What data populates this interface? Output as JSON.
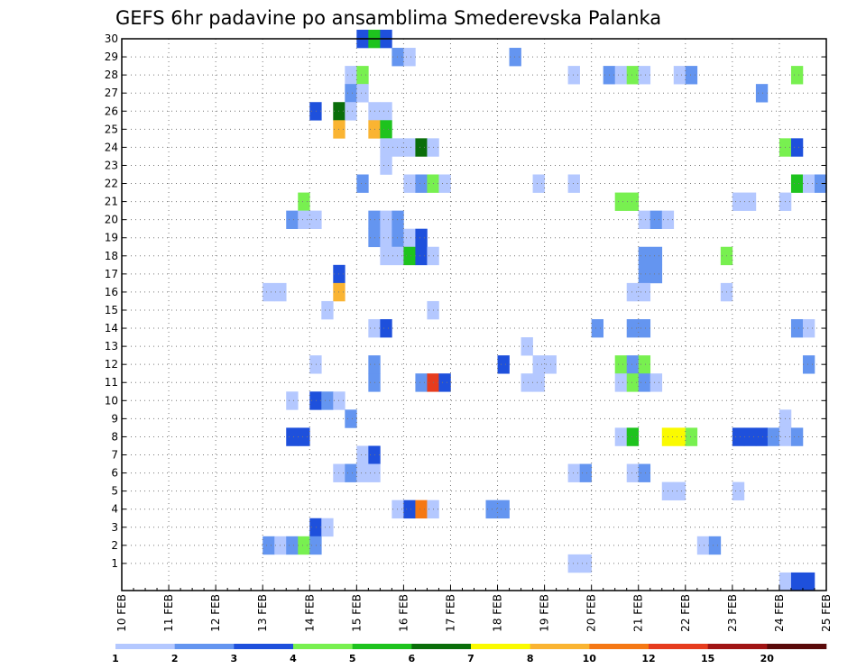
{
  "chart_data": {
    "type": "heatmap",
    "title": "GEFS 6hr padavine po ansamblima Smederevska Palanka",
    "x_ticks": [
      "10 FEB",
      "11 FEB",
      "12 FEB",
      "13 FEB",
      "14 FEB",
      "15 FEB",
      "16 FEB",
      "17 FEB",
      "18 FEB",
      "19 FEB",
      "20 FEB",
      "21 FEB",
      "22 FEB",
      "23 FEB",
      "24 FEB",
      "25 FEB"
    ],
    "y_ticks": [
      "1",
      "2",
      "3",
      "4",
      "5",
      "6",
      "7",
      "8",
      "9",
      "10",
      "11",
      "12",
      "13",
      "14",
      "15",
      "16",
      "17",
      "18",
      "19",
      "20",
      "21",
      "22",
      "23",
      "24",
      "25",
      "26",
      "27",
      "28",
      "29",
      "30"
    ],
    "xlim": [
      "10 FEB",
      "25 FEB"
    ],
    "ylim": [
      0,
      30
    ],
    "grid": true,
    "colorbar": {
      "labels": [
        "1",
        "2",
        "3",
        "4",
        "5",
        "6",
        "7",
        "8",
        "10",
        "12",
        "15",
        "20"
      ],
      "colors": [
        "#b4c8ff",
        "#6495f0",
        "#1e50dc",
        "#78f050",
        "#1ec31e",
        "#0a6e0a",
        "#fafa00",
        "#fab432",
        "#f57814",
        "#e63c1e",
        "#a01414",
        "#5a0a0a"
      ]
    },
    "cells": [
      [
        "15 00Z",
        30,
        3
      ],
      [
        "15 06Z",
        30,
        5
      ],
      [
        "15 12Z",
        30,
        3
      ],
      [
        "15 18Z",
        29,
        2
      ],
      [
        "16 00Z",
        29,
        1
      ],
      [
        "18 06Z",
        29,
        2
      ],
      [
        "14 18Z",
        28,
        1
      ],
      [
        "15 00Z",
        28,
        4
      ],
      [
        "19 12Z",
        28,
        1
      ],
      [
        "20 06Z",
        28,
        2
      ],
      [
        "20 12Z",
        28,
        1
      ],
      [
        "20 18Z",
        28,
        4
      ],
      [
        "21 00Z",
        28,
        1
      ],
      [
        "21 18Z",
        28,
        1
      ],
      [
        "22 00Z",
        28,
        2
      ],
      [
        "24 06Z",
        28,
        4
      ],
      [
        "14 18Z",
        27,
        2
      ],
      [
        "15 00Z",
        27,
        1
      ],
      [
        "23 12Z",
        27,
        2
      ],
      [
        "14 00Z",
        26,
        3
      ],
      [
        "14 12Z",
        26,
        6
      ],
      [
        "14 18Z",
        26,
        1
      ],
      [
        "15 06Z",
        26,
        1
      ],
      [
        "15 12Z",
        26,
        1
      ],
      [
        "14 12Z",
        25,
        8
      ],
      [
        "15 06Z",
        25,
        8
      ],
      [
        "15 12Z",
        25,
        5
      ],
      [
        "15 12Z",
        24,
        1
      ],
      [
        "15 18Z",
        24,
        1
      ],
      [
        "16 00Z",
        24,
        1
      ],
      [
        "16 06Z",
        24,
        6
      ],
      [
        "16 12Z",
        24,
        1
      ],
      [
        "24 00Z",
        24,
        4
      ],
      [
        "24 06Z",
        24,
        3
      ],
      [
        "15 12Z",
        23,
        1
      ],
      [
        "15 00Z",
        22,
        2
      ],
      [
        "16 00Z",
        22,
        1
      ],
      [
        "16 06Z",
        22,
        2
      ],
      [
        "16 12Z",
        22,
        4
      ],
      [
        "16 18Z",
        22,
        1
      ],
      [
        "18 18Z",
        22,
        1
      ],
      [
        "19 12Z",
        22,
        1
      ],
      [
        "24 06Z",
        22,
        5
      ],
      [
        "24 12Z",
        22,
        1
      ],
      [
        "24 18Z",
        22,
        2
      ],
      [
        "13 18Z",
        21,
        4
      ],
      [
        "20 12Z",
        21,
        4
      ],
      [
        "20 18Z",
        21,
        4
      ],
      [
        "23 00Z",
        21,
        1
      ],
      [
        "23 06Z",
        21,
        1
      ],
      [
        "24 00Z",
        21,
        1
      ],
      [
        "13 12Z",
        20,
        2
      ],
      [
        "13 18Z",
        20,
        1
      ],
      [
        "14 00Z",
        20,
        1
      ],
      [
        "15 06Z",
        20,
        2
      ],
      [
        "15 12Z",
        20,
        1
      ],
      [
        "15 18Z",
        20,
        2
      ],
      [
        "21 00Z",
        20,
        1
      ],
      [
        "21 06Z",
        20,
        2
      ],
      [
        "21 12Z",
        20,
        1
      ],
      [
        "15 06Z",
        19,
        2
      ],
      [
        "15 12Z",
        19,
        1
      ],
      [
        "15 18Z",
        19,
        2
      ],
      [
        "16 00Z",
        19,
        1
      ],
      [
        "16 06Z",
        19,
        3
      ],
      [
        "15 12Z",
        18,
        1
      ],
      [
        "15 18Z",
        18,
        1
      ],
      [
        "16 00Z",
        18,
        5
      ],
      [
        "16 06Z",
        18,
        3
      ],
      [
        "16 12Z",
        18,
        1
      ],
      [
        "21 00Z",
        18,
        2
      ],
      [
        "21 06Z",
        18,
        2
      ],
      [
        "22 18Z",
        18,
        4
      ],
      [
        "14 12Z",
        17,
        3
      ],
      [
        "21 00Z",
        17,
        2
      ],
      [
        "21 06Z",
        17,
        2
      ],
      [
        "13 00Z",
        16,
        1
      ],
      [
        "13 06Z",
        16,
        1
      ],
      [
        "14 12Z",
        16,
        8
      ],
      [
        "20 18Z",
        16,
        1
      ],
      [
        "21 00Z",
        16,
        1
      ],
      [
        "22 18Z",
        16,
        1
      ],
      [
        "14 06Z",
        15,
        1
      ],
      [
        "16 12Z",
        15,
        1
      ],
      [
        "15 06Z",
        14,
        1
      ],
      [
        "15 12Z",
        14,
        3
      ],
      [
        "20 00Z",
        14,
        2
      ],
      [
        "20 18Z",
        14,
        2
      ],
      [
        "21 00Z",
        14,
        2
      ],
      [
        "24 06Z",
        14,
        2
      ],
      [
        "24 12Z",
        14,
        1
      ],
      [
        "18 12Z",
        13,
        1
      ],
      [
        "14 00Z",
        12,
        1
      ],
      [
        "15 06Z",
        12,
        2
      ],
      [
        "18 00Z",
        12,
        3
      ],
      [
        "18 18Z",
        12,
        1
      ],
      [
        "19 00Z",
        12,
        1
      ],
      [
        "20 12Z",
        12,
        4
      ],
      [
        "20 18Z",
        12,
        2
      ],
      [
        "21 00Z",
        12,
        4
      ],
      [
        "24 12Z",
        12,
        2
      ],
      [
        "15 06Z",
        11,
        2
      ],
      [
        "16 06Z",
        11,
        2
      ],
      [
        "16 12Z",
        11,
        10
      ],
      [
        "16 18Z",
        11,
        3
      ],
      [
        "18 12Z",
        11,
        1
      ],
      [
        "18 18Z",
        11,
        1
      ],
      [
        "20 12Z",
        11,
        1
      ],
      [
        "20 18Z",
        11,
        4
      ],
      [
        "21 00Z",
        11,
        2
      ],
      [
        "21 06Z",
        11,
        1
      ],
      [
        "13 12Z",
        10,
        1
      ],
      [
        "14 00Z",
        10,
        3
      ],
      [
        "14 06Z",
        10,
        2
      ],
      [
        "14 12Z",
        10,
        1
      ],
      [
        "14 18Z",
        9,
        2
      ],
      [
        "24 00Z",
        9,
        1
      ],
      [
        "13 12Z",
        8,
        3
      ],
      [
        "13 18Z",
        8,
        3
      ],
      [
        "20 12Z",
        8,
        1
      ],
      [
        "20 18Z",
        8,
        5
      ],
      [
        "21 12Z",
        8,
        7
      ],
      [
        "21 18Z",
        8,
        7
      ],
      [
        "22 00Z",
        8,
        4
      ],
      [
        "23 00Z",
        8,
        3
      ],
      [
        "23 06Z",
        8,
        3
      ],
      [
        "23 12Z",
        8,
        3
      ],
      [
        "23 18Z",
        8,
        2
      ],
      [
        "24 00Z",
        8,
        1
      ],
      [
        "24 06Z",
        8,
        2
      ],
      [
        "15 00Z",
        7,
        1
      ],
      [
        "15 06Z",
        7,
        3
      ],
      [
        "14 12Z",
        6,
        1
      ],
      [
        "14 18Z",
        6,
        2
      ],
      [
        "15 00Z",
        6,
        1
      ],
      [
        "15 06Z",
        6,
        1
      ],
      [
        "19 12Z",
        6,
        1
      ],
      [
        "19 18Z",
        6,
        2
      ],
      [
        "20 18Z",
        6,
        1
      ],
      [
        "21 00Z",
        6,
        2
      ],
      [
        "21 12Z",
        5,
        1
      ],
      [
        "21 18Z",
        5,
        1
      ],
      [
        "23 00Z",
        5,
        1
      ],
      [
        "15 18Z",
        4,
        1
      ],
      [
        "16 00Z",
        4,
        3
      ],
      [
        "16 06Z",
        4,
        9
      ],
      [
        "16 12Z",
        4,
        1
      ],
      [
        "17 18Z",
        4,
        2
      ],
      [
        "18 00Z",
        4,
        2
      ],
      [
        "14 00Z",
        3,
        3
      ],
      [
        "14 06Z",
        3,
        1
      ],
      [
        "13 00Z",
        2,
        2
      ],
      [
        "13 06Z",
        2,
        1
      ],
      [
        "13 12Z",
        2,
        2
      ],
      [
        "13 18Z",
        2,
        4
      ],
      [
        "14 00Z",
        2,
        2
      ],
      [
        "22 06Z",
        2,
        1
      ],
      [
        "22 12Z",
        2,
        2
      ],
      [
        "19 12Z",
        1,
        1
      ],
      [
        "19 18Z",
        1,
        1
      ],
      [
        "24 00Z",
        0,
        1
      ],
      [
        "24 06Z",
        0,
        3
      ],
      [
        "24 12Z",
        0,
        3
      ]
    ]
  }
}
